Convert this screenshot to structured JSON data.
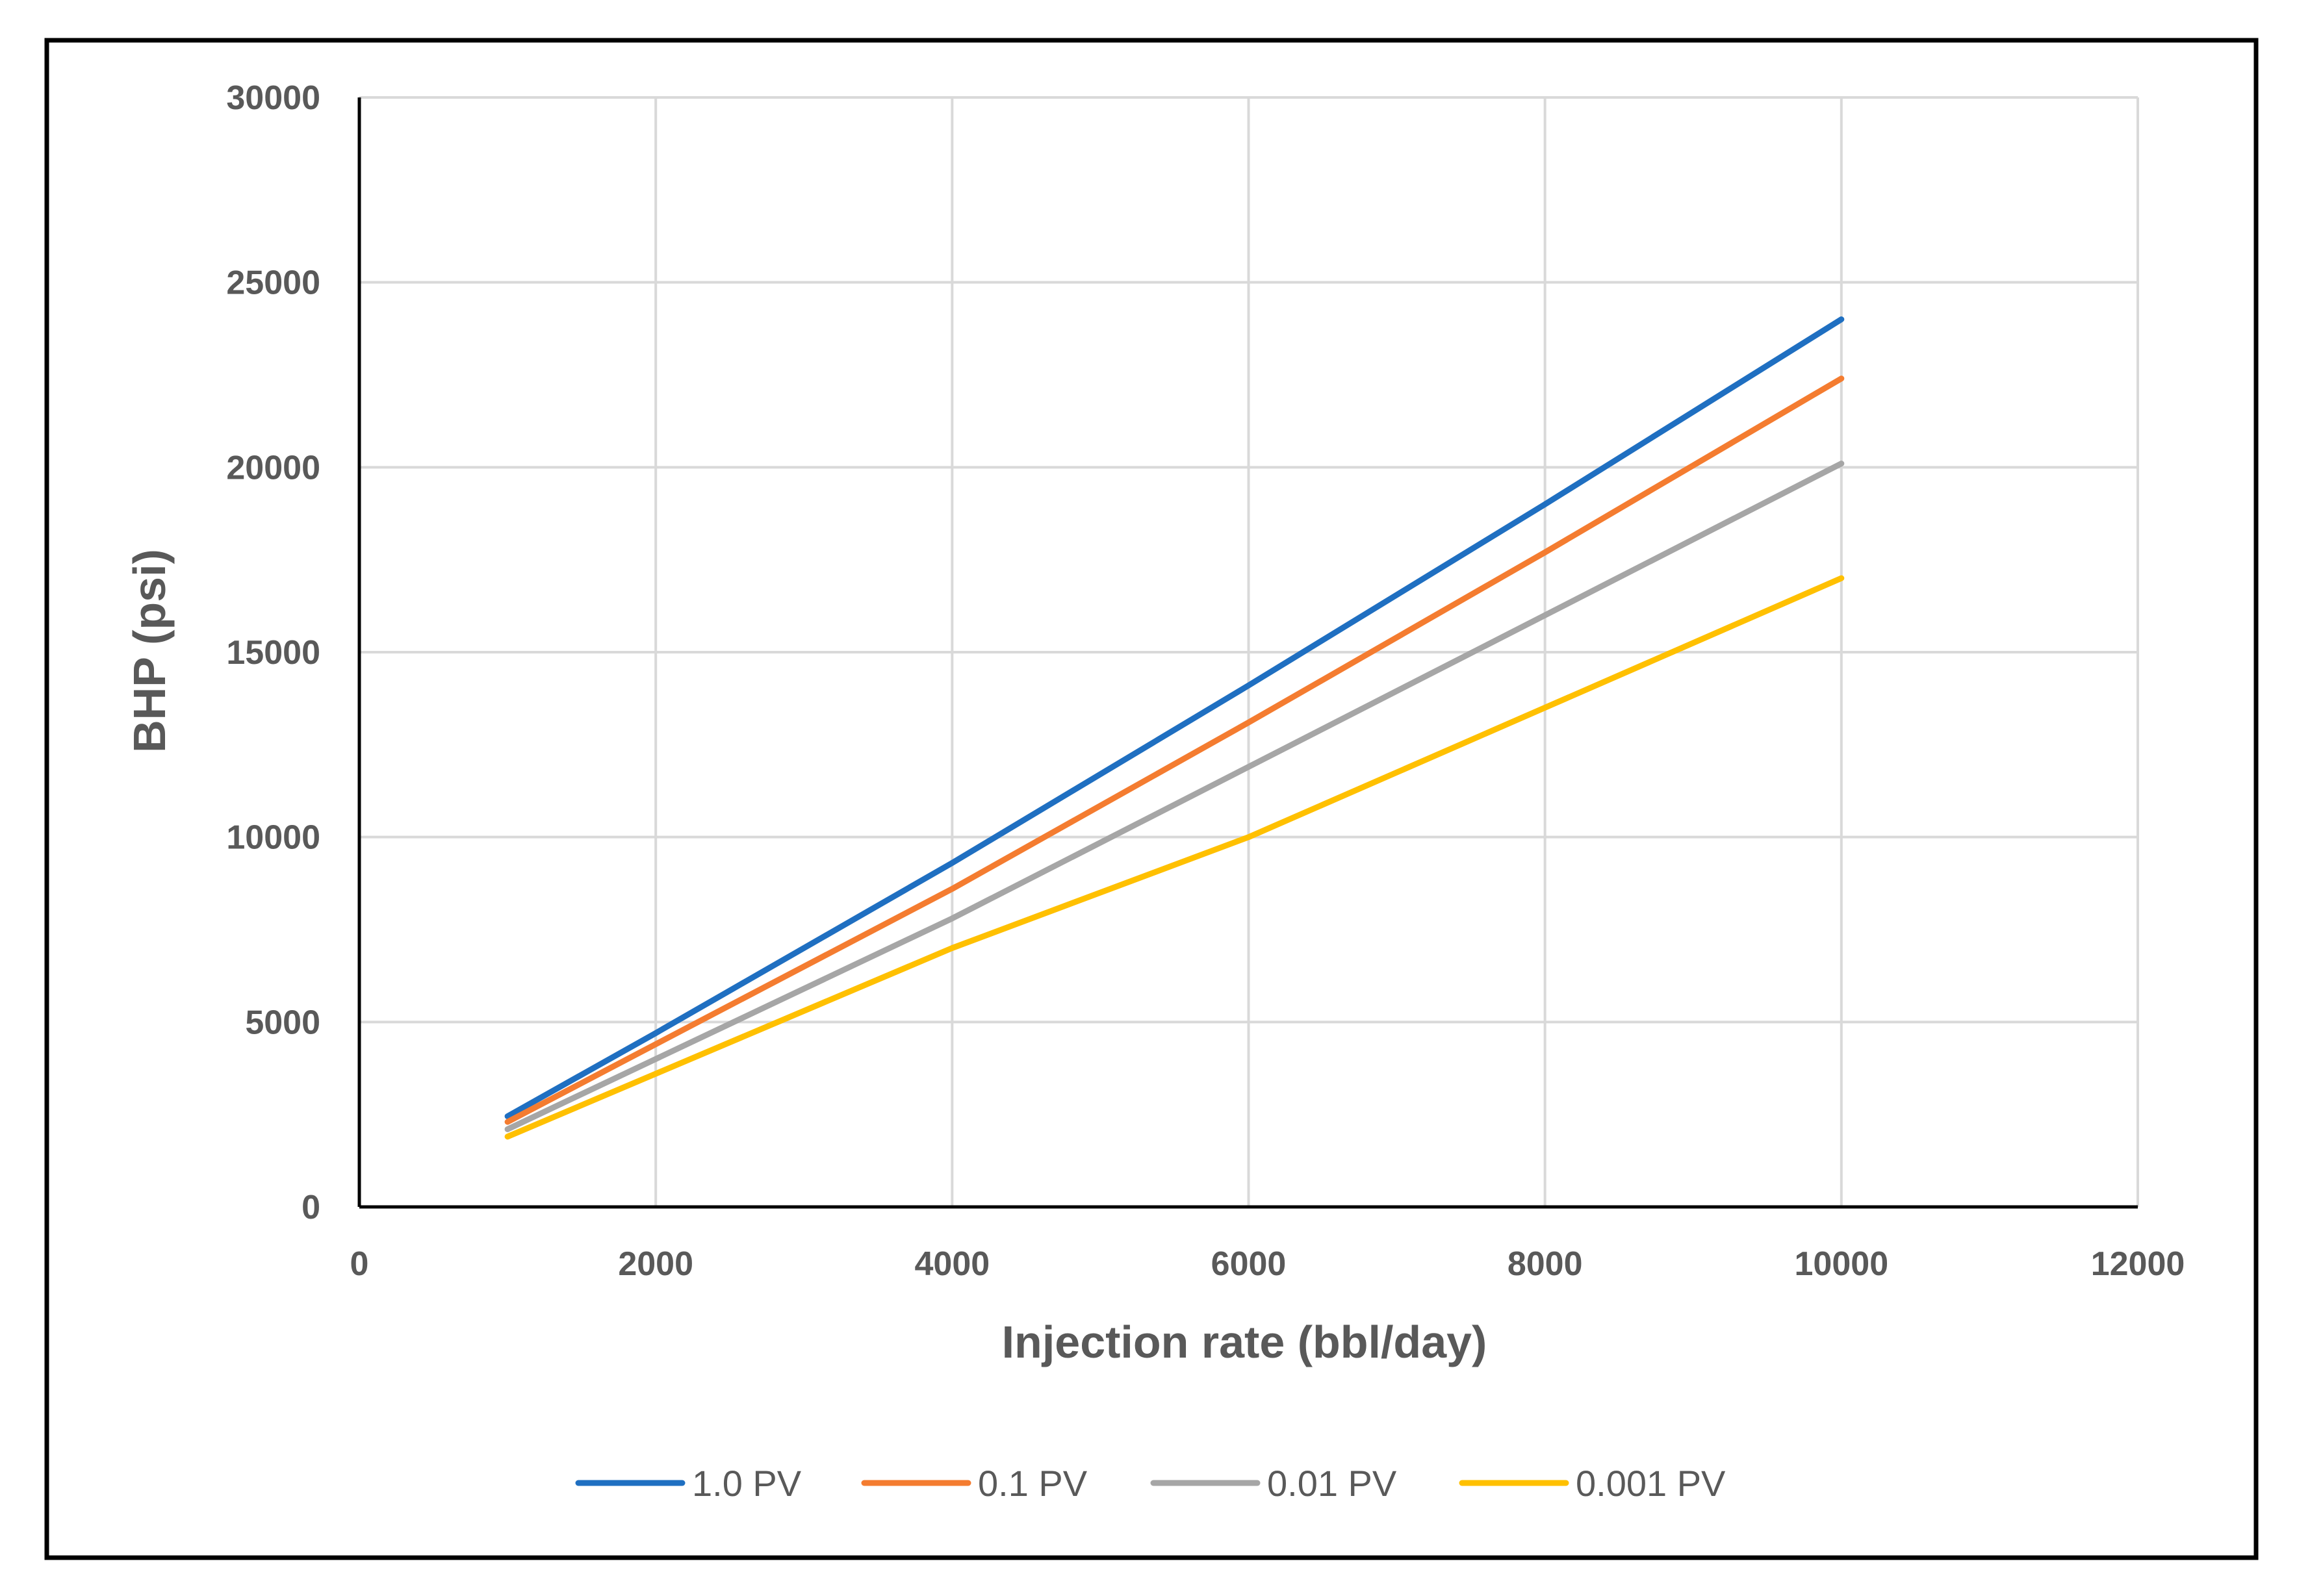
{
  "chart_data": {
    "type": "line",
    "title": "",
    "xlabel": "Injection rate (bbl/day)",
    "ylabel": "BHP (psi)",
    "xlim": [
      0,
      12000
    ],
    "ylim": [
      0,
      30000
    ],
    "xticks": [
      0,
      2000,
      4000,
      6000,
      8000,
      10000,
      12000
    ],
    "yticks": [
      0,
      5000,
      10000,
      15000,
      20000,
      25000,
      30000
    ],
    "xtick_labels": [
      "0",
      "2000",
      "4000",
      "6000",
      "8000",
      "10000",
      "12000"
    ],
    "ytick_labels": [
      "0",
      "5000",
      "10000",
      "15000",
      "20000",
      "25000",
      "30000"
    ],
    "grid": true,
    "legend_position": "bottom",
    "x": [
      1000,
      2000,
      4000,
      6000,
      8000,
      10000
    ],
    "series": [
      {
        "name": "1.0 PV",
        "color": "#1F6FC1",
        "values": [
          2450,
          4700,
          9300,
          14100,
          19000,
          24000
        ]
      },
      {
        "name": "0.1 PV",
        "color": "#F47C30",
        "values": [
          2300,
          4400,
          8600,
          13100,
          17700,
          22400
        ]
      },
      {
        "name": "0.01 PV",
        "color": "#A6A6A6",
        "values": [
          2100,
          4000,
          7800,
          11900,
          16000,
          20100
        ]
      },
      {
        "name": "0.001 PV",
        "color": "#FFC000",
        "values": [
          1900,
          3600,
          7000,
          10000,
          13500,
          17000
        ]
      }
    ]
  }
}
